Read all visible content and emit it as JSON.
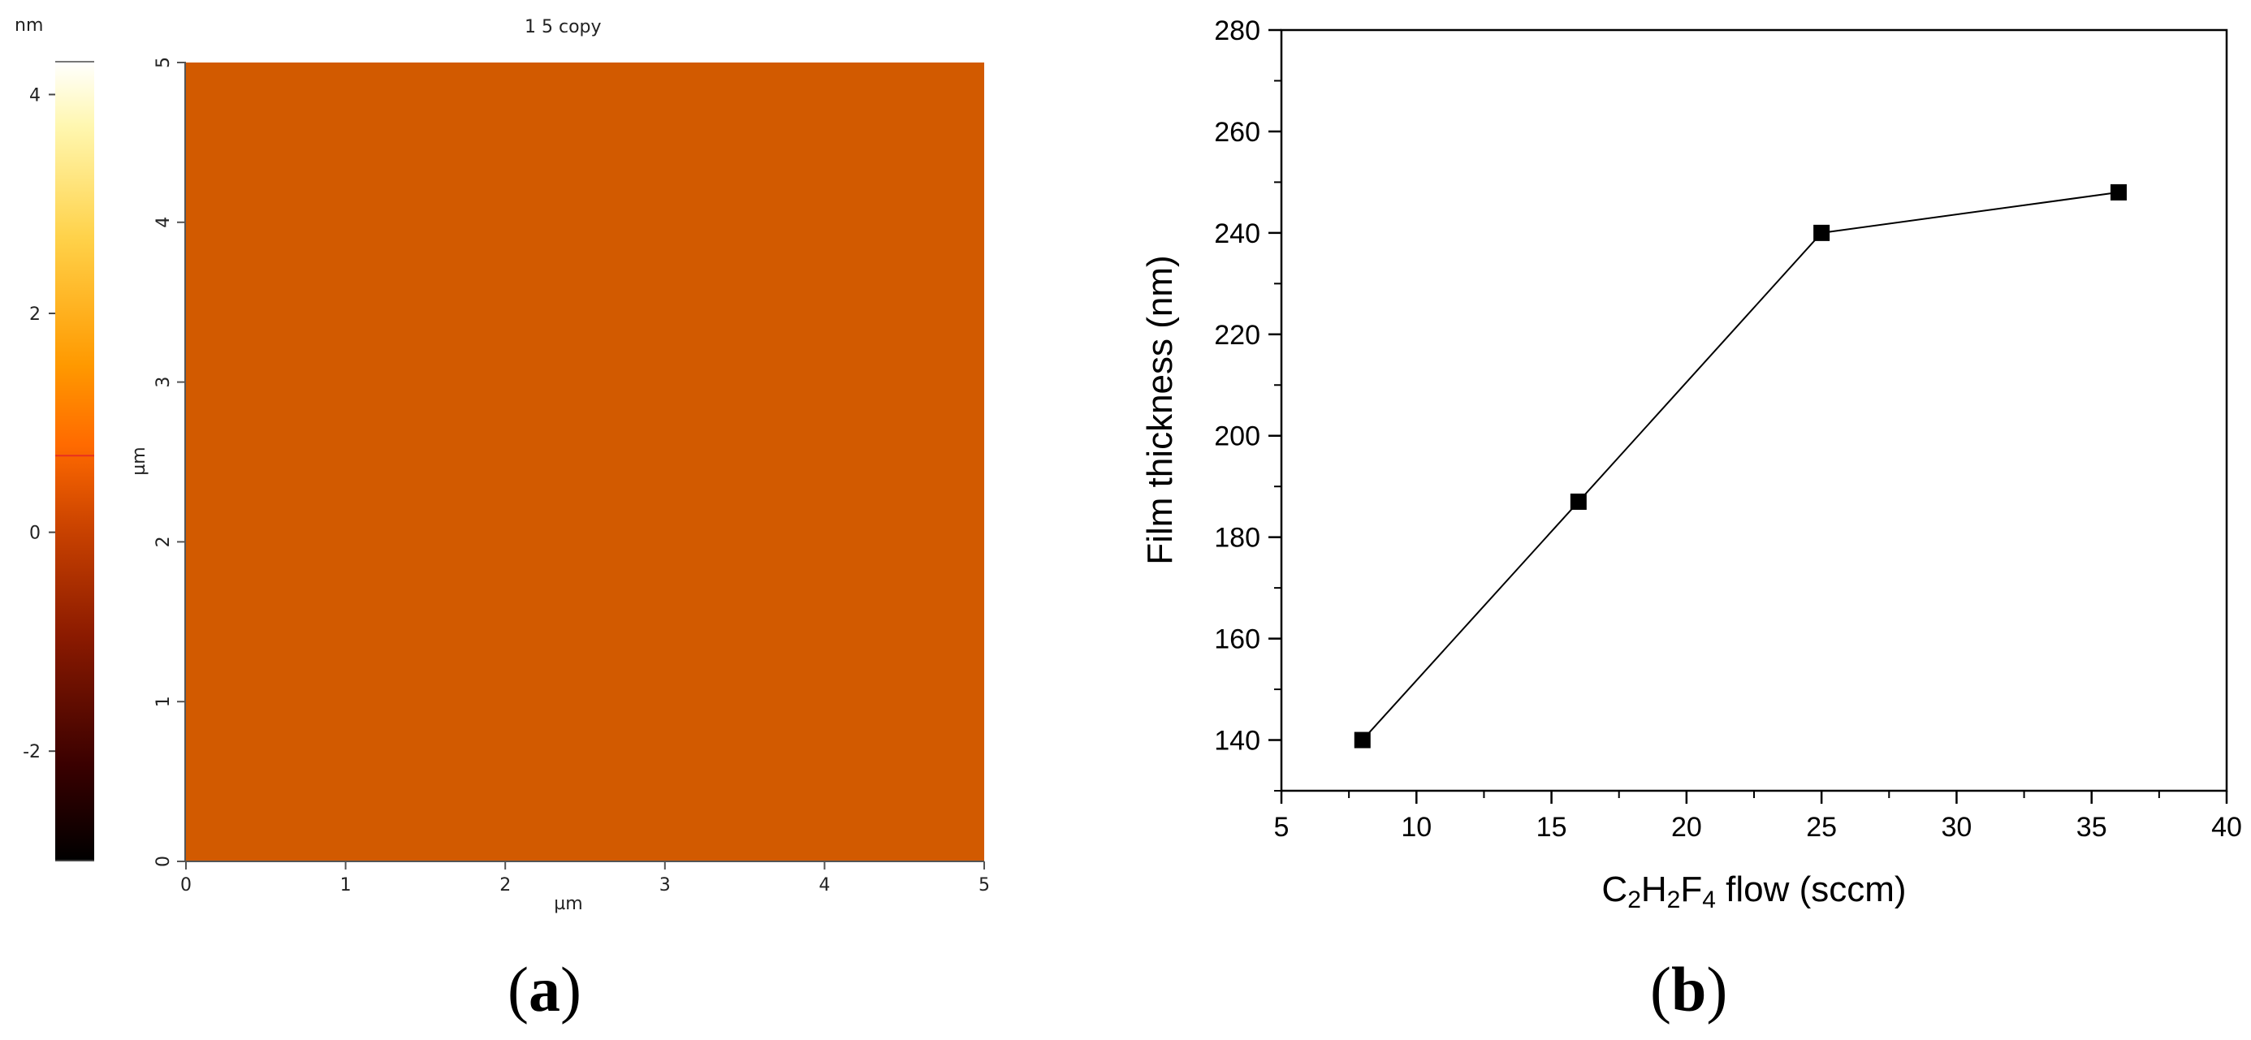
{
  "panels": {
    "a": {
      "label": "(",
      "label_letter": "a",
      "label_close": ")"
    },
    "b": {
      "label": "(",
      "label_letter": "b",
      "label_close": ")"
    }
  },
  "afm": {
    "title": "1 5 copy",
    "colorbar_unit": "nm",
    "colorbar_ticks": [
      "4",
      "2",
      "0",
      "-2"
    ],
    "colorbar_tick_values": [
      4,
      2,
      0,
      -2
    ],
    "colorbar_range": [
      -3.0,
      4.3
    ],
    "colorbar_marker_value": 0.7,
    "x_axis_label": "µm",
    "y_axis_label": "µm",
    "x_ticks": [
      "0",
      "1",
      "2",
      "3",
      "4",
      "5"
    ],
    "y_ticks": [
      "0",
      "1",
      "2",
      "3",
      "4",
      "5"
    ],
    "scan_size_um": 5,
    "colors": {
      "cmap": [
        "#000000",
        "#3a0000",
        "#8b1a00",
        "#cc4400",
        "#ff6a00",
        "#ff9900",
        "#ffd24a",
        "#fff7b0",
        "#ffffff"
      ],
      "marker": "#e83020"
    }
  },
  "chart_data": {
    "type": "line",
    "x": [
      8,
      16,
      25,
      36
    ],
    "y": [
      140,
      187,
      240,
      248
    ],
    "xlabel_parts": [
      "C",
      "2",
      "H",
      "2",
      "F",
      "4",
      " flow (sccm)"
    ],
    "ylabel": "Film thickness (nm)",
    "xlim": [
      5,
      40
    ],
    "ylim": [
      130,
      280
    ],
    "x_ticks": [
      5,
      10,
      15,
      20,
      25,
      30,
      35,
      40
    ],
    "y_ticks": [
      140,
      160,
      180,
      200,
      220,
      240,
      260,
      280
    ],
    "x_tick_labels": [
      "5",
      "10",
      "15",
      "20",
      "25",
      "30",
      "35",
      "40"
    ],
    "y_tick_labels": [
      "140",
      "160",
      "180",
      "200",
      "220",
      "240",
      "260",
      "280"
    ],
    "marker": "square",
    "grid": false,
    "colors": {
      "line": "#000000",
      "marker": "#000000"
    }
  }
}
